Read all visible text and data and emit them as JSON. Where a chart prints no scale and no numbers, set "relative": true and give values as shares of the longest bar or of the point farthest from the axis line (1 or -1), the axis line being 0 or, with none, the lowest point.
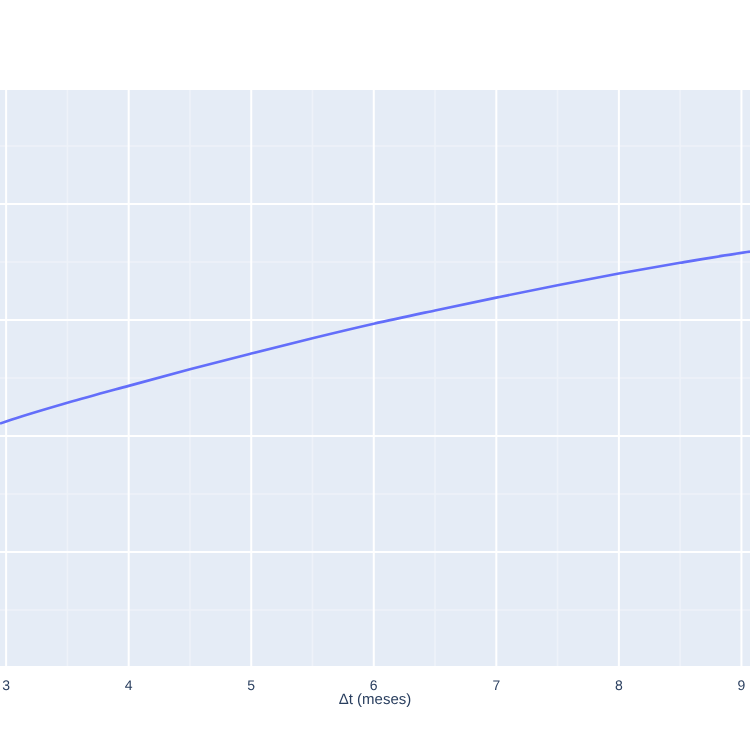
{
  "chart_data": {
    "type": "line",
    "xlabel": "Δt (meses)",
    "relative": true,
    "grid": true,
    "tick_labels": "x",
    "xlim": [
      2.95,
      9.07
    ],
    "xticks": [
      3,
      4,
      5,
      6,
      7,
      8,
      9
    ],
    "series": [
      {
        "color": "#636efa",
        "x": [
          2.95,
          3,
          3.5,
          4,
          4.5,
          5,
          5.5,
          6,
          6.5,
          7,
          7.5,
          8,
          8.5,
          9,
          9.07
        ],
        "values": [
          0.585,
          0.59,
          0.635,
          0.676,
          0.716,
          0.754,
          0.791,
          0.826,
          0.858,
          0.889,
          0.919,
          0.947,
          0.973,
          0.997,
          1
        ]
      }
    ]
  }
}
